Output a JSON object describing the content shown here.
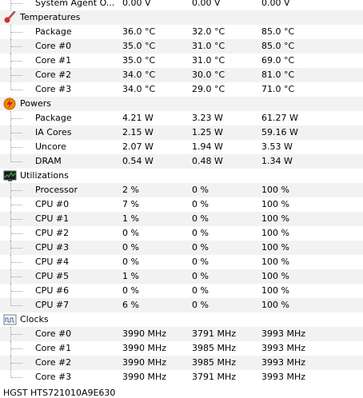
{
  "top_row": {
    "label": "System Agent O...",
    "value": "0.00 V",
    "min": "0.00 V",
    "max": "0.00 V"
  },
  "groups": {
    "temperatures": {
      "title": "Temperatures",
      "icon": "thermometer-icon",
      "rows": [
        {
          "label": "Package",
          "value": "36.0 °C",
          "min": "32.0 °C",
          "max": "85.0 °C"
        },
        {
          "label": "Core #0",
          "value": "35.0 °C",
          "min": "31.0 °C",
          "max": "85.0 °C"
        },
        {
          "label": "Core #1",
          "value": "35.0 °C",
          "min": "31.0 °C",
          "max": "69.0 °C"
        },
        {
          "label": "Core #2",
          "value": "34.0 °C",
          "min": "30.0 °C",
          "max": "81.0 °C"
        },
        {
          "label": "Core #3",
          "value": "34.0 °C",
          "min": "29.0 °C",
          "max": "71.0 °C"
        }
      ]
    },
    "powers": {
      "title": "Powers",
      "icon": "lightning-icon",
      "rows": [
        {
          "label": "Package",
          "value": "4.21 W",
          "min": "3.23 W",
          "max": "61.27 W"
        },
        {
          "label": "IA Cores",
          "value": "2.15 W",
          "min": "1.25 W",
          "max": "59.16 W"
        },
        {
          "label": "Uncore",
          "value": "2.07 W",
          "min": "1.94 W",
          "max": "3.53 W"
        },
        {
          "label": "DRAM",
          "value": "0.54 W",
          "min": "0.48 W",
          "max": "1.34 W"
        }
      ]
    },
    "utilizations": {
      "title": "Utilizations",
      "icon": "monitor-graph-icon",
      "rows": [
        {
          "label": "Processor",
          "value": "2 %",
          "min": "0 %",
          "max": "100 %"
        },
        {
          "label": "CPU #0",
          "value": "7 %",
          "min": "0 %",
          "max": "100 %"
        },
        {
          "label": "CPU #1",
          "value": "1 %",
          "min": "0 %",
          "max": "100 %"
        },
        {
          "label": "CPU #2",
          "value": "0 %",
          "min": "0 %",
          "max": "100 %"
        },
        {
          "label": "CPU #3",
          "value": "0 %",
          "min": "0 %",
          "max": "100 %"
        },
        {
          "label": "CPU #4",
          "value": "0 %",
          "min": "0 %",
          "max": "100 %"
        },
        {
          "label": "CPU #5",
          "value": "1 %",
          "min": "0 %",
          "max": "100 %"
        },
        {
          "label": "CPU #6",
          "value": "0 %",
          "min": "0 %",
          "max": "100 %"
        },
        {
          "label": "CPU #7",
          "value": "6 %",
          "min": "0 %",
          "max": "100 %"
        }
      ]
    },
    "clocks": {
      "title": "Clocks",
      "icon": "clock-signal-icon",
      "rows": [
        {
          "label": "Core #0",
          "value": "3990 MHz",
          "min": "3791 MHz",
          "max": "3993 MHz"
        },
        {
          "label": "Core #1",
          "value": "3990 MHz",
          "min": "3985 MHz",
          "max": "3993 MHz"
        },
        {
          "label": "Core #2",
          "value": "3990 MHz",
          "min": "3985 MHz",
          "max": "3993 MHz"
        },
        {
          "label": "Core #3",
          "value": "3990 MHz",
          "min": "3791 MHz",
          "max": "3993 MHz"
        }
      ]
    }
  },
  "cutoff_text": "HGST HTS721010A9E630",
  "colors": {
    "alt_row": "#f2f2f2",
    "thermometer_red": "#d32f2f",
    "lightning_orange": "#f08a00",
    "monitor_green": "#2e9e3f"
  }
}
